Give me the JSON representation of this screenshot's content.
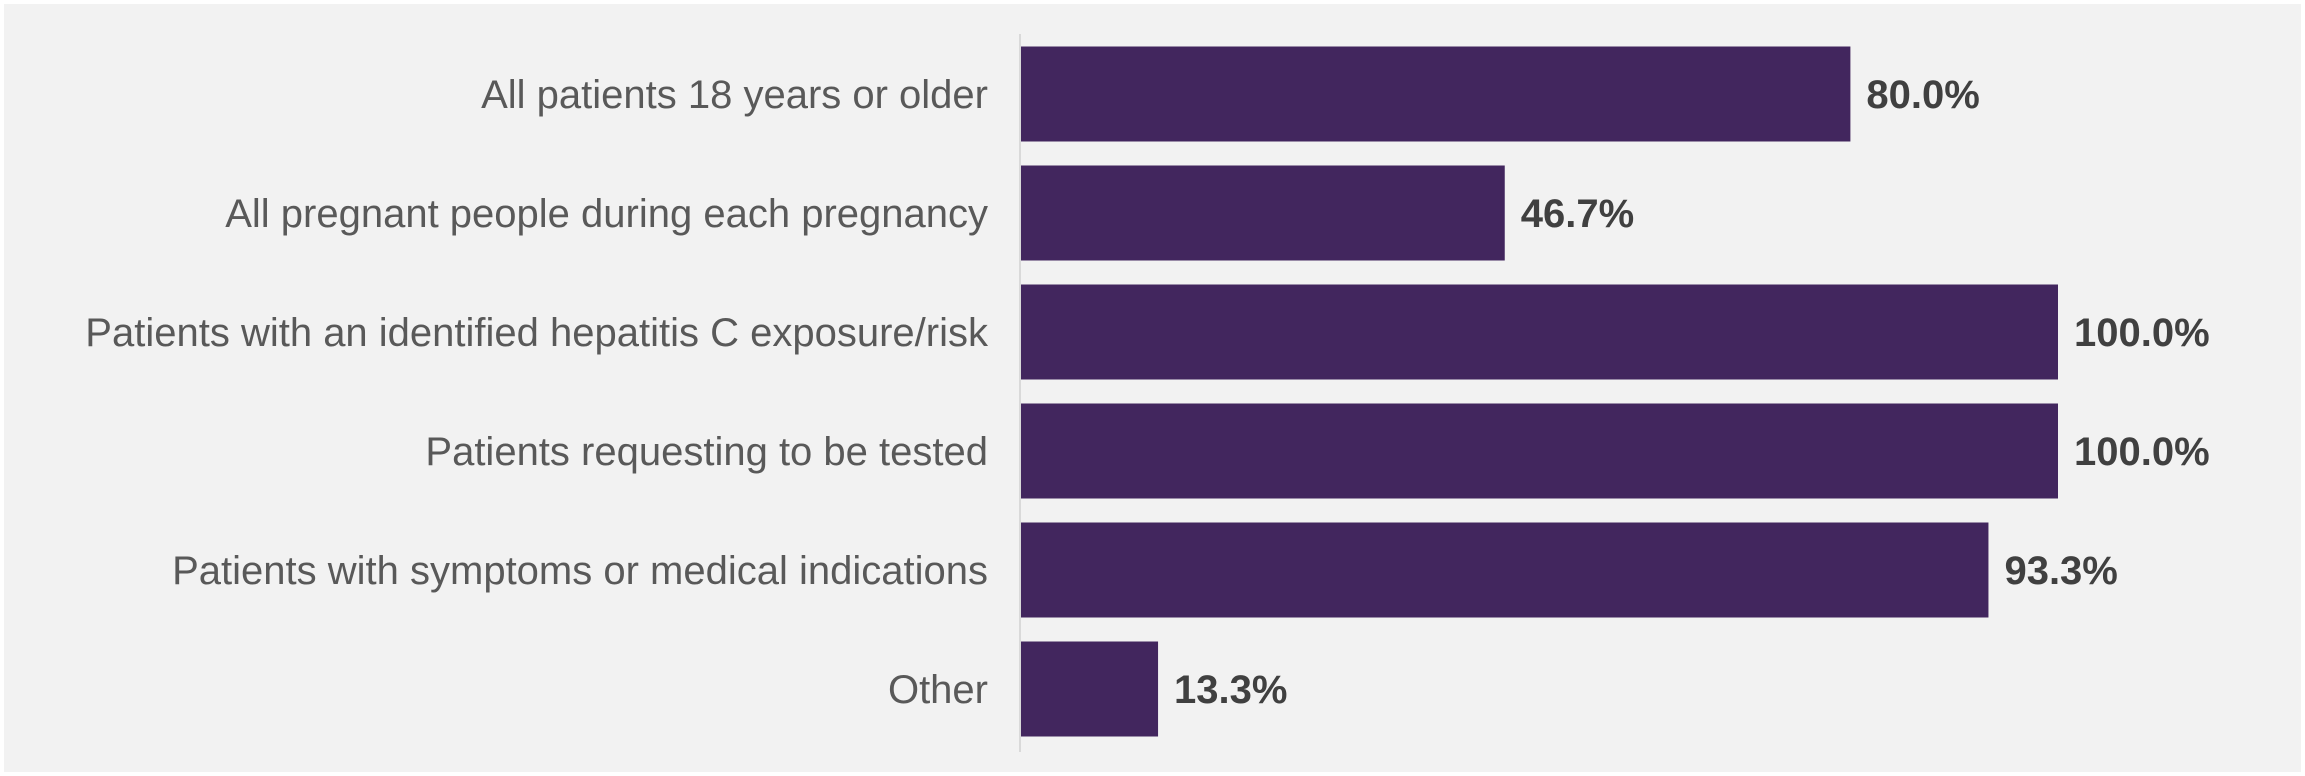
{
  "chart_data": {
    "type": "bar",
    "orientation": "horizontal",
    "categories": [
      "All patients 18 years or older",
      "All pregnant people during each pregnancy",
      "Patients with an identified hepatitis C exposure/risk",
      "Patients requesting to be tested",
      "Patients with symptoms or medical indications",
      "Other"
    ],
    "values": [
      80.0,
      46.7,
      100.0,
      100.0,
      93.3,
      13.3
    ],
    "value_labels": [
      "80.0%",
      "46.7%",
      "100.0%",
      "100.0%",
      "93.3%",
      "13.3%"
    ],
    "xlim": [
      0,
      100
    ],
    "grid": false,
    "legend": "none",
    "colors": {
      "bar": "#42265e",
      "background": "#f2f2f2",
      "axis": "#d9d9d9",
      "category_text": "#595959",
      "value_text": "#404040"
    }
  }
}
